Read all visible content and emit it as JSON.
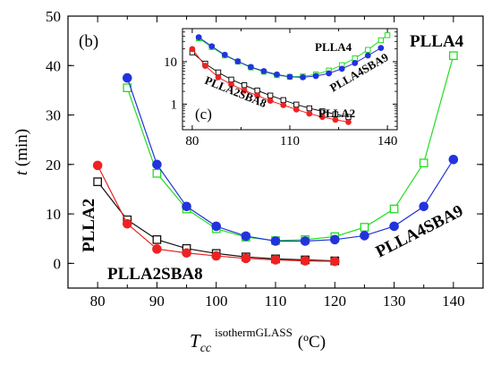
{
  "chart_data": [
    {
      "type": "line",
      "panel": "(b)",
      "xlabel": "T",
      "xlabel_sub": "cc",
      "xlabel_sup": "isothermGLASS",
      "xlabel_unit": "(ºC)",
      "ylabel": "t",
      "ylabel_unit": "(min)",
      "xlim": [
        75,
        145
      ],
      "ylim": [
        -5,
        50
      ],
      "x_ticks": [
        80,
        90,
        100,
        110,
        120,
        130,
        140
      ],
      "y_ticks": [
        0,
        10,
        20,
        30,
        40,
        50
      ],
      "annotations": [
        "PLLA4",
        "PLLA2",
        "PLLA2SBA8",
        "PLLA4SBA9"
      ],
      "series": [
        {
          "label": "PLLA4",
          "color": "#22dd22",
          "marker": "open-square",
          "x": [
            85,
            90,
            95,
            100,
            105,
            110,
            115,
            120,
            125,
            130,
            135,
            140
          ],
          "y": [
            35.5,
            18.2,
            11.0,
            7.0,
            5.3,
            4.6,
            4.8,
            5.4,
            7.3,
            11.0,
            20.3,
            42.0
          ]
        },
        {
          "label": "PLLA4SBA9",
          "color": "#2233dd",
          "marker": "filled-circle",
          "x": [
            85,
            90,
            95,
            100,
            105,
            110,
            115,
            120,
            125,
            130,
            135,
            140
          ],
          "y": [
            37.5,
            20.0,
            11.5,
            7.5,
            5.5,
            4.5,
            4.5,
            4.8,
            5.6,
            7.5,
            11.5,
            21.0
          ]
        },
        {
          "label": "PLLA2",
          "color": "#111111",
          "marker": "open-square",
          "x": [
            80,
            85,
            90,
            95,
            100,
            105,
            110,
            115,
            120
          ],
          "y": [
            16.5,
            8.8,
            4.8,
            3.0,
            2.0,
            1.3,
            0.9,
            0.7,
            0.5
          ]
        },
        {
          "label": "PLLA2SBA8",
          "color": "#ee2222",
          "marker": "filled-circle",
          "x": [
            80,
            85,
            90,
            95,
            100,
            105,
            110,
            115,
            120
          ],
          "y": [
            19.8,
            8.0,
            2.9,
            2.1,
            1.5,
            1.0,
            0.7,
            0.5,
            0.4
          ]
        }
      ]
    },
    {
      "type": "line",
      "panel": "(c)",
      "scale_y": "log",
      "xlim": [
        77,
        143
      ],
      "ylim": [
        0.25,
        60
      ],
      "x_ticks": [
        80,
        110,
        140
      ],
      "y_ticks": [
        1,
        10
      ],
      "annotations": [
        "PLLA4",
        "PLLA4SBA9",
        "PLLA2SBA8",
        "PLLA2"
      ],
      "series": [
        {
          "label": "PLLA4",
          "color": "#22dd22",
          "marker": "open-square",
          "x": [
            82,
            86,
            90,
            94,
            98,
            102,
            106,
            110,
            114,
            118,
            122,
            126,
            130,
            134,
            138,
            140
          ],
          "y": [
            35.5,
            22.0,
            14.0,
            10.0,
            7.3,
            5.8,
            4.8,
            4.4,
            4.5,
            5.0,
            6.2,
            8.3,
            12.0,
            19.0,
            32.0,
            42.0
          ]
        },
        {
          "label": "PLLA4SBA9",
          "color": "#2233dd",
          "marker": "filled-circle",
          "x": [
            82,
            86,
            90,
            94,
            98,
            102,
            106,
            110,
            114,
            118,
            122,
            126,
            130,
            134,
            138
          ],
          "y": [
            37.5,
            23.0,
            14.5,
            10.2,
            7.5,
            6.0,
            5.0,
            4.4,
            4.3,
            4.6,
            5.3,
            6.8,
            9.3,
            14.0,
            21.0
          ]
        },
        {
          "label": "PLLA2",
          "color": "#111111",
          "marker": "open-square",
          "x": [
            80,
            84,
            88,
            92,
            96,
            100,
            104,
            108,
            112,
            116,
            120,
            124,
            128
          ],
          "y": [
            16.5,
            9.0,
            5.6,
            3.8,
            2.8,
            2.1,
            1.6,
            1.25,
            0.98,
            0.8,
            0.68,
            0.58,
            0.5
          ]
        },
        {
          "label": "PLLA2SBA8",
          "color": "#ee2222",
          "marker": "filled-circle",
          "x": [
            80,
            84,
            88,
            92,
            96,
            100,
            104,
            108,
            112,
            116,
            120,
            124,
            128
          ],
          "y": [
            19.8,
            8.0,
            4.3,
            2.9,
            2.1,
            1.6,
            1.2,
            0.95,
            0.75,
            0.6,
            0.5,
            0.43,
            0.38
          ]
        }
      ]
    }
  ]
}
